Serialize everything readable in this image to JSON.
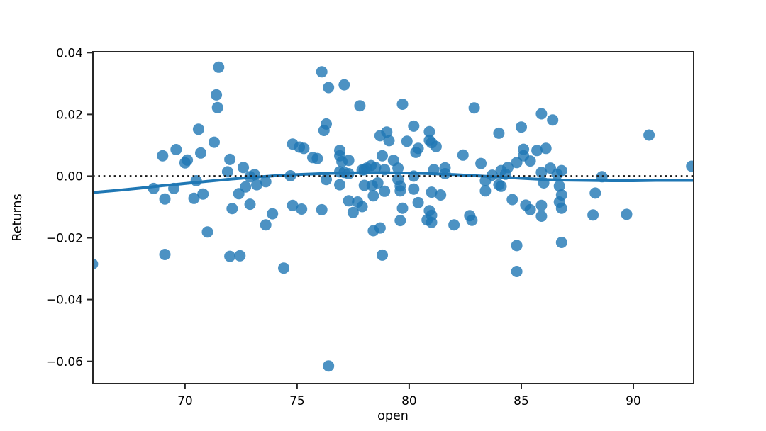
{
  "figure": {
    "background": "#ffffff"
  },
  "chart_data": {
    "type": "scatter",
    "title": "",
    "xlabel": "open",
    "ylabel": "Returns",
    "xlim": [
      65.89,
      92.69
    ],
    "ylim": [
      -0.0672,
      0.0403
    ],
    "grid": false,
    "legend": null,
    "xticks": {
      "values": [
        70,
        75,
        80,
        85,
        90
      ],
      "labels": [
        "70",
        "75",
        "80",
        "85",
        "90"
      ]
    },
    "yticks": {
      "values": [
        0.04,
        0.02,
        0.0,
        -0.02,
        -0.04,
        -0.06
      ],
      "labels": [
        "0.04",
        "0.02",
        "0.00",
        "−0.02",
        "−0.04",
        "−0.06"
      ]
    },
    "colors": {
      "scatter": "#1f77b4",
      "scatter_opacity": 0.8,
      "trend_line": "#1f77b4",
      "zero_line": "#1a1a1a",
      "spine": "#262626",
      "text": "#000000"
    },
    "zero_line": {
      "style": "dotted",
      "y": 0.0
    },
    "marker_radius": 8,
    "series": [
      {
        "name": "scatter-points",
        "type": "scatter",
        "points": [
          [
            65.87,
            -0.0285
          ],
          [
            68.6,
            -0.004
          ],
          [
            69.0,
            0.0066
          ],
          [
            69.1,
            -0.0074
          ],
          [
            69.1,
            -0.0254
          ],
          [
            69.5,
            -0.004
          ],
          [
            69.6,
            0.0086
          ],
          [
            70.0,
            0.0043
          ],
          [
            70.1,
            0.0052
          ],
          [
            70.4,
            -0.0072
          ],
          [
            70.5,
            -0.0015
          ],
          [
            70.6,
            0.0152
          ],
          [
            70.7,
            0.0075
          ],
          [
            70.8,
            -0.0058
          ],
          [
            71.0,
            -0.0181
          ],
          [
            71.3,
            0.011
          ],
          [
            71.4,
            0.0263
          ],
          [
            71.45,
            0.0222
          ],
          [
            71.5,
            0.0353
          ],
          [
            71.9,
            0.0014
          ],
          [
            72.0,
            0.0054
          ],
          [
            72.0,
            -0.026
          ],
          [
            72.1,
            -0.0105
          ],
          [
            72.4,
            -0.0057
          ],
          [
            72.45,
            -0.0258
          ],
          [
            72.6,
            0.0028
          ],
          [
            72.7,
            -0.0035
          ],
          [
            72.9,
            -0.0002
          ],
          [
            72.9,
            -0.0091
          ],
          [
            73.1,
            0.0005
          ],
          [
            73.2,
            -0.0028
          ],
          [
            73.6,
            -0.0018
          ],
          [
            73.6,
            -0.0158
          ],
          [
            73.9,
            -0.0122
          ],
          [
            74.4,
            -0.0298
          ],
          [
            74.7,
            0.0001
          ],
          [
            74.8,
            0.0104
          ],
          [
            74.8,
            -0.0095
          ],
          [
            75.1,
            0.0094
          ],
          [
            75.2,
            -0.0107
          ],
          [
            75.3,
            0.009
          ],
          [
            75.7,
            0.006
          ],
          [
            75.9,
            0.0057
          ],
          [
            76.1,
            0.0338
          ],
          [
            76.1,
            -0.0109
          ],
          [
            76.2,
            0.0148
          ],
          [
            76.3,
            0.0169
          ],
          [
            76.3,
            -0.0011
          ],
          [
            76.4,
            0.0287
          ],
          [
            76.4,
            -0.0615
          ],
          [
            76.9,
            0.0083
          ],
          [
            76.9,
            0.0066
          ],
          [
            76.9,
            0.0014
          ],
          [
            76.9,
            -0.0028
          ],
          [
            77.0,
            0.0047
          ],
          [
            77.1,
            0.0296
          ],
          [
            77.1,
            0.0012
          ],
          [
            77.3,
            0.0051
          ],
          [
            77.3,
            0.0008
          ],
          [
            77.3,
            -0.008
          ],
          [
            77.5,
            -0.0118
          ],
          [
            77.7,
            -0.0084
          ],
          [
            77.8,
            0.0228
          ],
          [
            77.9,
            0.002
          ],
          [
            77.9,
            -0.0099
          ],
          [
            78.0,
            -0.003
          ],
          [
            78.0,
            0.0021
          ],
          [
            78.1,
            0.0026
          ],
          [
            78.3,
            0.0034
          ],
          [
            78.35,
            -0.0031
          ],
          [
            78.4,
            -0.0177
          ],
          [
            78.4,
            -0.0064
          ],
          [
            78.5,
            0.0028
          ],
          [
            78.6,
            -0.0022
          ],
          [
            78.7,
            0.0131
          ],
          [
            78.7,
            -0.0168
          ],
          [
            78.8,
            -0.0256
          ],
          [
            78.8,
            0.0066
          ],
          [
            78.9,
            0.0021
          ],
          [
            78.9,
            -0.0049
          ],
          [
            79.0,
            0.0143
          ],
          [
            79.1,
            0.0115
          ],
          [
            79.3,
            0.0051
          ],
          [
            79.5,
            -0.0011
          ],
          [
            79.5,
            0.0026
          ],
          [
            79.6,
            -0.0032
          ],
          [
            79.6,
            -0.0048
          ],
          [
            79.6,
            -0.0144
          ],
          [
            79.7,
            0.0233
          ],
          [
            79.7,
            -0.0104
          ],
          [
            79.9,
            0.0113
          ],
          [
            80.2,
            0.0162
          ],
          [
            80.2,
            0.0
          ],
          [
            80.2,
            -0.0042
          ],
          [
            80.3,
            0.0077
          ],
          [
            80.4,
            0.009
          ],
          [
            80.4,
            -0.0086
          ],
          [
            80.8,
            -0.0142
          ],
          [
            80.9,
            0.0144
          ],
          [
            80.9,
            0.0116
          ],
          [
            80.9,
            -0.0112
          ],
          [
            81.0,
            0.0108
          ],
          [
            81.0,
            -0.0127
          ],
          [
            81.0,
            -0.015
          ],
          [
            81.0,
            -0.0052
          ],
          [
            81.1,
            0.0021
          ],
          [
            81.2,
            0.0096
          ],
          [
            81.4,
            -0.0061
          ],
          [
            81.6,
            0.0027
          ],
          [
            81.6,
            0.0008
          ],
          [
            82.0,
            -0.0158
          ],
          [
            82.4,
            0.0068
          ],
          [
            82.7,
            -0.0128
          ],
          [
            82.8,
            -0.0143
          ],
          [
            82.9,
            0.0221
          ],
          [
            83.2,
            0.0041
          ],
          [
            83.4,
            -0.0048
          ],
          [
            83.4,
            -0.0015
          ],
          [
            83.7,
            0.0003
          ],
          [
            84.0,
            0.0139
          ],
          [
            84.0,
            -0.0028
          ],
          [
            84.1,
            -0.0033
          ],
          [
            84.1,
            0.0018
          ],
          [
            84.3,
            0.0006
          ],
          [
            84.4,
            0.0028
          ],
          [
            84.6,
            -0.0076
          ],
          [
            84.8,
            0.0044
          ],
          [
            84.8,
            -0.0225
          ],
          [
            84.8,
            -0.0309
          ],
          [
            85.0,
            0.0159
          ],
          [
            85.1,
            0.0087
          ],
          [
            85.1,
            0.0066
          ],
          [
            85.2,
            -0.0094
          ],
          [
            85.4,
            0.0049
          ],
          [
            85.4,
            -0.0109
          ],
          [
            85.7,
            0.0083
          ],
          [
            85.9,
            0.0202
          ],
          [
            85.9,
            0.0012
          ],
          [
            85.9,
            -0.0095
          ],
          [
            85.9,
            -0.013
          ],
          [
            86.0,
            -0.0022
          ],
          [
            86.1,
            0.009
          ],
          [
            86.3,
            0.0026
          ],
          [
            86.4,
            0.0182
          ],
          [
            86.6,
            0.0006
          ],
          [
            86.7,
            -0.0032
          ],
          [
            86.7,
            -0.0084
          ],
          [
            86.8,
            0.0018
          ],
          [
            86.8,
            -0.0061
          ],
          [
            86.8,
            -0.0104
          ],
          [
            86.8,
            -0.0215
          ],
          [
            88.2,
            -0.0126
          ],
          [
            88.3,
            -0.0055
          ],
          [
            88.6,
            -0.0002
          ],
          [
            89.7,
            -0.0124
          ],
          [
            90.7,
            0.0133
          ],
          [
            92.6,
            0.0032
          ]
        ]
      },
      {
        "name": "lowess-trend",
        "type": "line",
        "points": [
          [
            65.89,
            -0.0053
          ],
          [
            67.0,
            -0.0046
          ],
          [
            68.0,
            -0.0039
          ],
          [
            69.0,
            -0.0031
          ],
          [
            70.0,
            -0.0024
          ],
          [
            71.0,
            -0.0017
          ],
          [
            72.0,
            -0.001
          ],
          [
            73.0,
            -0.0004
          ],
          [
            74.0,
            0.0001
          ],
          [
            75.0,
            0.0005
          ],
          [
            76.0,
            0.0008
          ],
          [
            77.0,
            0.001
          ],
          [
            78.0,
            0.0011
          ],
          [
            79.0,
            0.0011
          ],
          [
            80.0,
            0.001
          ],
          [
            81.0,
            0.0008
          ],
          [
            82.0,
            0.0005
          ],
          [
            83.0,
            0.0001
          ],
          [
            84.0,
            -0.0003
          ],
          [
            85.0,
            -0.0007
          ],
          [
            86.0,
            -0.0011
          ],
          [
            87.0,
            -0.0013
          ],
          [
            88.0,
            -0.0014
          ],
          [
            89.0,
            -0.0015
          ],
          [
            90.0,
            -0.0015
          ],
          [
            91.0,
            -0.0014
          ],
          [
            92.0,
            -0.0014
          ],
          [
            92.69,
            -0.0014
          ]
        ]
      }
    ]
  }
}
